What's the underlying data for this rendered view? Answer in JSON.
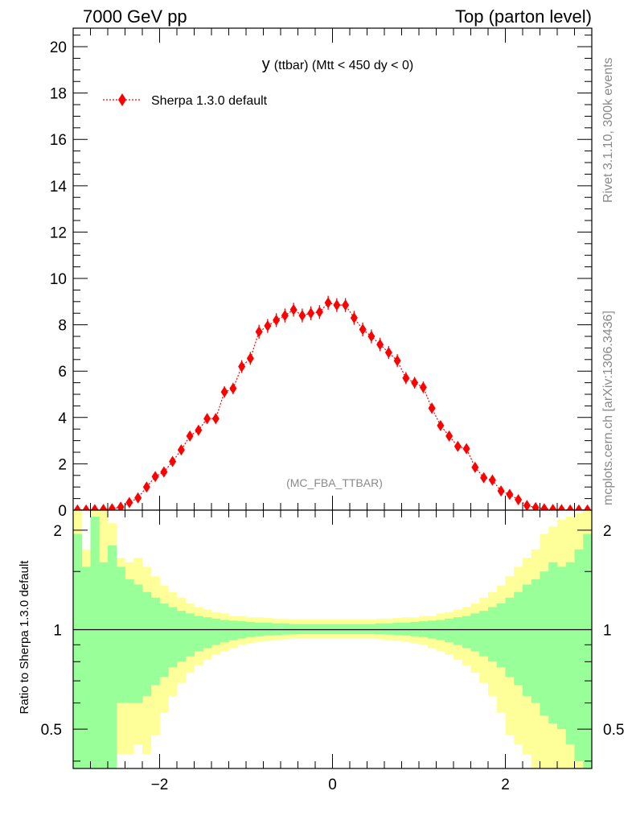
{
  "header": {
    "left": "7000 GeV pp",
    "right": "Top (parton level)"
  },
  "side_labels": {
    "rivet": "Rivet 3.1.10,  300k events",
    "mcplots": "mcplots.cern.ch [arXiv:1306.3436]"
  },
  "plot_title": {
    "main": "y",
    "detail": "(ttbar) (Mtt < 450 dy < 0)"
  },
  "analysis_tag": "(MC_FBA_TTBAR)",
  "legend": {
    "label": "Sherpa 1.3.0 default",
    "color": "#ff0000"
  },
  "ratio_ylabel": "Ratio to Sherpa 1.3.0 default",
  "colors": {
    "band_inner": "#99ff99",
    "band_outer": "#ffff99",
    "series": "#ff0000"
  },
  "chart_data": [
    {
      "type": "scatter",
      "title": "y (ttbar) (Mtt < 450 dy < 0)",
      "xlabel": "",
      "ylabel": "",
      "xlim": [
        -3.0,
        3.0
      ],
      "ylim": [
        0,
        20.8
      ],
      "y_ticks": [
        0,
        2,
        4,
        6,
        8,
        10,
        12,
        14,
        16,
        18,
        20
      ],
      "y_tick_labels": [
        "0",
        "2",
        "4",
        "6",
        "8",
        "10",
        "12",
        "14",
        "16",
        "18",
        "20"
      ],
      "series": [
        {
          "name": "Sherpa 1.3.0 default",
          "x": [
            -2.95,
            -2.85,
            -2.75,
            -2.65,
            -2.55,
            -2.45,
            -2.35,
            -2.25,
            -2.15,
            -2.05,
            -1.95,
            -1.85,
            -1.75,
            -1.65,
            -1.55,
            -1.45,
            -1.35,
            -1.25,
            -1.15,
            -1.05,
            -0.95,
            -0.85,
            -0.75,
            -0.65,
            -0.55,
            -0.45,
            -0.35,
            -0.25,
            -0.15,
            -0.05,
            0.05,
            0.15,
            0.25,
            0.35,
            0.45,
            0.55,
            0.65,
            0.75,
            0.85,
            0.95,
            1.05,
            1.15,
            1.25,
            1.35,
            1.45,
            1.55,
            1.65,
            1.75,
            1.85,
            1.95,
            2.05,
            2.15,
            2.25,
            2.35,
            2.45,
            2.55,
            2.65,
            2.75,
            2.85,
            2.95
          ],
          "y": [
            0.01,
            0.01,
            0.02,
            0.03,
            0.06,
            0.13,
            0.33,
            0.53,
            1.0,
            1.45,
            1.65,
            2.1,
            2.6,
            3.2,
            3.45,
            3.95,
            3.95,
            5.1,
            5.25,
            6.2,
            6.55,
            7.7,
            7.95,
            8.2,
            8.4,
            8.65,
            8.4,
            8.5,
            8.55,
            8.95,
            8.85,
            8.85,
            8.3,
            7.8,
            7.5,
            7.15,
            6.8,
            6.45,
            5.7,
            5.5,
            5.3,
            4.4,
            3.65,
            3.2,
            2.75,
            2.65,
            1.85,
            1.4,
            1.3,
            0.83,
            0.68,
            0.45,
            0.2,
            0.11,
            0.06,
            0.03,
            0.02,
            0.01,
            0.01,
            0.01
          ],
          "yerr": [
            0.01,
            0.01,
            0.02,
            0.03,
            0.04,
            0.06,
            0.08,
            0.1,
            0.13,
            0.15,
            0.16,
            0.17,
            0.19,
            0.2,
            0.21,
            0.22,
            0.22,
            0.25,
            0.25,
            0.27,
            0.28,
            0.3,
            0.3,
            0.3,
            0.3,
            0.3,
            0.3,
            0.3,
            0.3,
            0.3,
            0.3,
            0.3,
            0.3,
            0.3,
            0.3,
            0.29,
            0.28,
            0.28,
            0.26,
            0.25,
            0.25,
            0.23,
            0.21,
            0.2,
            0.18,
            0.18,
            0.15,
            0.13,
            0.12,
            0.1,
            0.09,
            0.07,
            0.05,
            0.04,
            0.03,
            0.02,
            0.02,
            0.01,
            0.01,
            0.01
          ]
        }
      ]
    },
    {
      "type": "area",
      "title": "",
      "xlabel": "",
      "ylabel": "Ratio to Sherpa 1.3.0 default",
      "xlim": [
        -3.0,
        3.0
      ],
      "ylim": [
        0.38,
        2.3
      ],
      "log_y": true,
      "x_ticks": [
        -2,
        0,
        2
      ],
      "x_tick_labels": [
        "−2",
        "0",
        "2"
      ],
      "y_ticks": [
        0.5,
        1,
        2
      ],
      "y_tick_labels": [
        "0.5",
        "1",
        "2"
      ],
      "reference_line": 1,
      "bin_edges": [
        -3.0,
        -2.9,
        -2.8,
        -2.7,
        -2.6,
        -2.5,
        -2.4,
        -2.3,
        -2.2,
        -2.1,
        -2.0,
        -1.9,
        -1.8,
        -1.7,
        -1.6,
        -1.5,
        -1.4,
        -1.3,
        -1.2,
        -1.1,
        -1.0,
        -0.9,
        -0.8,
        -0.7,
        -0.6,
        -0.5,
        -0.4,
        -0.3,
        -0.2,
        -0.1,
        0.0,
        0.1,
        0.2,
        0.3,
        0.4,
        0.5,
        0.6,
        0.7,
        0.8,
        0.9,
        1.0,
        1.1,
        1.2,
        1.3,
        1.4,
        1.5,
        1.6,
        1.7,
        1.8,
        1.9,
        2.0,
        2.1,
        2.2,
        2.3,
        2.4,
        2.5,
        2.6,
        2.7,
        2.8,
        2.9,
        3.0
      ],
      "series": [
        {
          "name": "inner band (green)",
          "upper": [
            1.95,
            1.55,
            2.2,
            1.6,
            1.8,
            1.55,
            1.42,
            1.37,
            1.3,
            1.25,
            1.2,
            1.17,
            1.14,
            1.12,
            1.1,
            1.09,
            1.08,
            1.07,
            1.065,
            1.06,
            1.055,
            1.05,
            1.05,
            1.045,
            1.045,
            1.04,
            1.04,
            1.04,
            1.04,
            1.04,
            1.04,
            1.04,
            1.04,
            1.04,
            1.04,
            1.045,
            1.045,
            1.05,
            1.05,
            1.055,
            1.06,
            1.065,
            1.07,
            1.08,
            1.09,
            1.1,
            1.12,
            1.14,
            1.17,
            1.2,
            1.25,
            1.3,
            1.37,
            1.42,
            1.5,
            1.6,
            1.55,
            1.6,
            1.75,
            1.95
          ],
          "lower": [
            0.33,
            0.33,
            0.33,
            0.33,
            0.33,
            0.6,
            0.6,
            0.6,
            0.63,
            0.68,
            0.72,
            0.77,
            0.8,
            0.83,
            0.86,
            0.88,
            0.9,
            0.915,
            0.93,
            0.94,
            0.95,
            0.955,
            0.96,
            0.963,
            0.966,
            0.968,
            0.97,
            0.97,
            0.97,
            0.97,
            0.97,
            0.97,
            0.97,
            0.97,
            0.97,
            0.968,
            0.966,
            0.963,
            0.96,
            0.955,
            0.95,
            0.94,
            0.93,
            0.915,
            0.9,
            0.88,
            0.86,
            0.83,
            0.8,
            0.77,
            0.72,
            0.68,
            0.63,
            0.6,
            0.55,
            0.52,
            0.5,
            0.45,
            0.4,
            0.33
          ]
        },
        {
          "name": "outer band (yellow)",
          "upper": [
            2.3,
            1.75,
            2.3,
            2.3,
            2.1,
            1.65,
            1.6,
            1.65,
            1.55,
            1.45,
            1.36,
            1.3,
            1.25,
            1.2,
            1.17,
            1.15,
            1.13,
            1.12,
            1.1,
            1.1,
            1.09,
            1.09,
            1.085,
            1.08,
            1.08,
            1.075,
            1.075,
            1.075,
            1.075,
            1.075,
            1.075,
            1.075,
            1.075,
            1.075,
            1.075,
            1.08,
            1.08,
            1.085,
            1.09,
            1.09,
            1.1,
            1.1,
            1.12,
            1.13,
            1.15,
            1.17,
            1.2,
            1.25,
            1.3,
            1.36,
            1.45,
            1.55,
            1.65,
            1.75,
            1.95,
            2.05,
            2.15,
            2.2,
            2.25,
            2.3
          ],
          "lower": [
            0.33,
            0.42,
            0.33,
            0.33,
            0.33,
            0.42,
            0.42,
            0.45,
            0.42,
            0.48,
            0.56,
            0.63,
            0.69,
            0.74,
            0.78,
            0.81,
            0.84,
            0.86,
            0.88,
            0.9,
            0.91,
            0.92,
            0.925,
            0.93,
            0.935,
            0.94,
            0.94,
            0.94,
            0.94,
            0.94,
            0.94,
            0.94,
            0.94,
            0.94,
            0.94,
            0.935,
            0.93,
            0.925,
            0.92,
            0.91,
            0.9,
            0.88,
            0.86,
            0.84,
            0.81,
            0.78,
            0.74,
            0.69,
            0.63,
            0.56,
            0.48,
            0.45,
            0.42,
            0.38,
            0.35,
            0.33,
            0.33,
            0.33,
            0.33,
            0.33
          ]
        }
      ]
    }
  ]
}
